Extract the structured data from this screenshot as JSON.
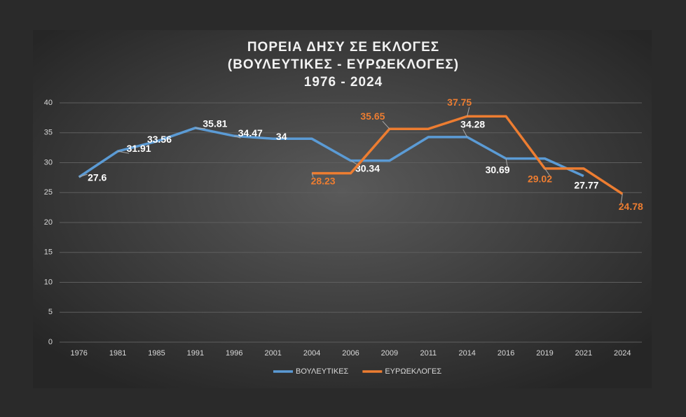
{
  "chart_data": {
    "type": "line",
    "title": [
      "ΠΟΡΕΙΑ ΔΗΣΥ ΣΕ ΕΚΛΟΓΕΣ",
      "(ΒΟΥΛΕΥΤΙΚΕΣ - ΕΥΡΩΕΚΛΟΓΕΣ)",
      "1976 - 2024"
    ],
    "categories": [
      "1976",
      "1981",
      "1985",
      "1991",
      "1996",
      "2001",
      "2004",
      "2006",
      "2009",
      "2011",
      "2014",
      "2016",
      "2019",
      "2021",
      "2024"
    ],
    "series": [
      {
        "name": "ΒΟΥΛΕΥΤΙΚΕΣ",
        "color": "#5b9bd5",
        "values": [
          27.6,
          31.91,
          33.56,
          35.81,
          34.47,
          34,
          34,
          30.34,
          30.34,
          34.28,
          34.28,
          30.69,
          30.69,
          27.77,
          null
        ],
        "value_labels": [
          "27.6",
          "31.91",
          "33.56",
          "35.81",
          "34.47",
          "34",
          null,
          "30.34",
          null,
          null,
          "34.28",
          "30.69",
          null,
          "27.77",
          null
        ]
      },
      {
        "name": "ΕΥΡΩΕΚΛΟΓΕΣ",
        "color": "#ed7d31",
        "values": [
          null,
          null,
          null,
          null,
          null,
          null,
          28.23,
          28.23,
          35.65,
          35.65,
          37.75,
          37.75,
          29.02,
          29.02,
          24.78
        ],
        "value_labels": [
          null,
          null,
          null,
          null,
          null,
          null,
          "28.23",
          null,
          "35.65",
          null,
          "37.75",
          null,
          "29.02",
          null,
          "24.78"
        ]
      }
    ],
    "ylim": [
      0,
      40
    ],
    "yticks": [
      0,
      5,
      10,
      15,
      20,
      25,
      30,
      35,
      40
    ],
    "grid": true,
    "legend": "bottom"
  }
}
